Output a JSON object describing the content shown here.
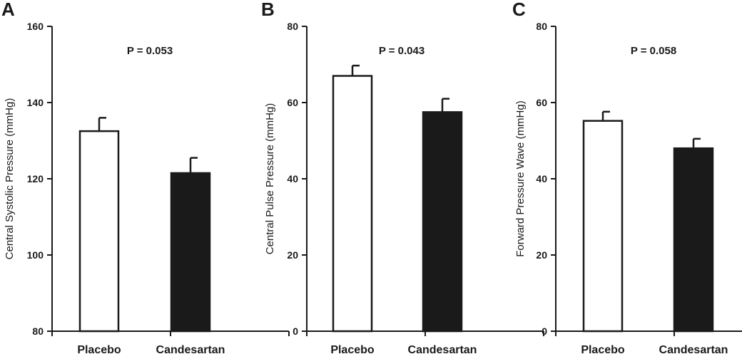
{
  "chart_data": [
    {
      "type": "bar",
      "panel_label": "A",
      "categories": [
        "Placebo",
        "Candesartan"
      ],
      "values": [
        132.5,
        121.5
      ],
      "errors": [
        3.5,
        4.0
      ],
      "bar_fills": [
        "#ffffff",
        "#1a1a1a"
      ],
      "ylabel": "Central Systolic Pressure (mmHg)",
      "ylim": [
        80,
        160
      ],
      "yticks": [
        80,
        100,
        120,
        140,
        160
      ],
      "annotation": "P = 0.053"
    },
    {
      "type": "bar",
      "panel_label": "B",
      "categories": [
        "Placebo",
        "Candesartan"
      ],
      "values": [
        67,
        57.5
      ],
      "errors": [
        2.7,
        3.5
      ],
      "bar_fills": [
        "#ffffff",
        "#1a1a1a"
      ],
      "ylabel": "Central Pulse Pressure (mmHg)",
      "ylim": [
        0,
        80
      ],
      "yticks": [
        0,
        20,
        40,
        60,
        80
      ],
      "annotation": "P = 0.043"
    },
    {
      "type": "bar",
      "panel_label": "C",
      "categories": [
        "Placebo",
        "Candesartan"
      ],
      "values": [
        55.2,
        48
      ],
      "errors": [
        2.4,
        2.5
      ],
      "bar_fills": [
        "#ffffff",
        "#1a1a1a"
      ],
      "ylabel": "Forward Pressure Wave (mmHg)",
      "ylim": [
        0,
        80
      ],
      "yticks": [
        0,
        20,
        40,
        60,
        80
      ],
      "annotation": "P = 0.058"
    }
  ]
}
